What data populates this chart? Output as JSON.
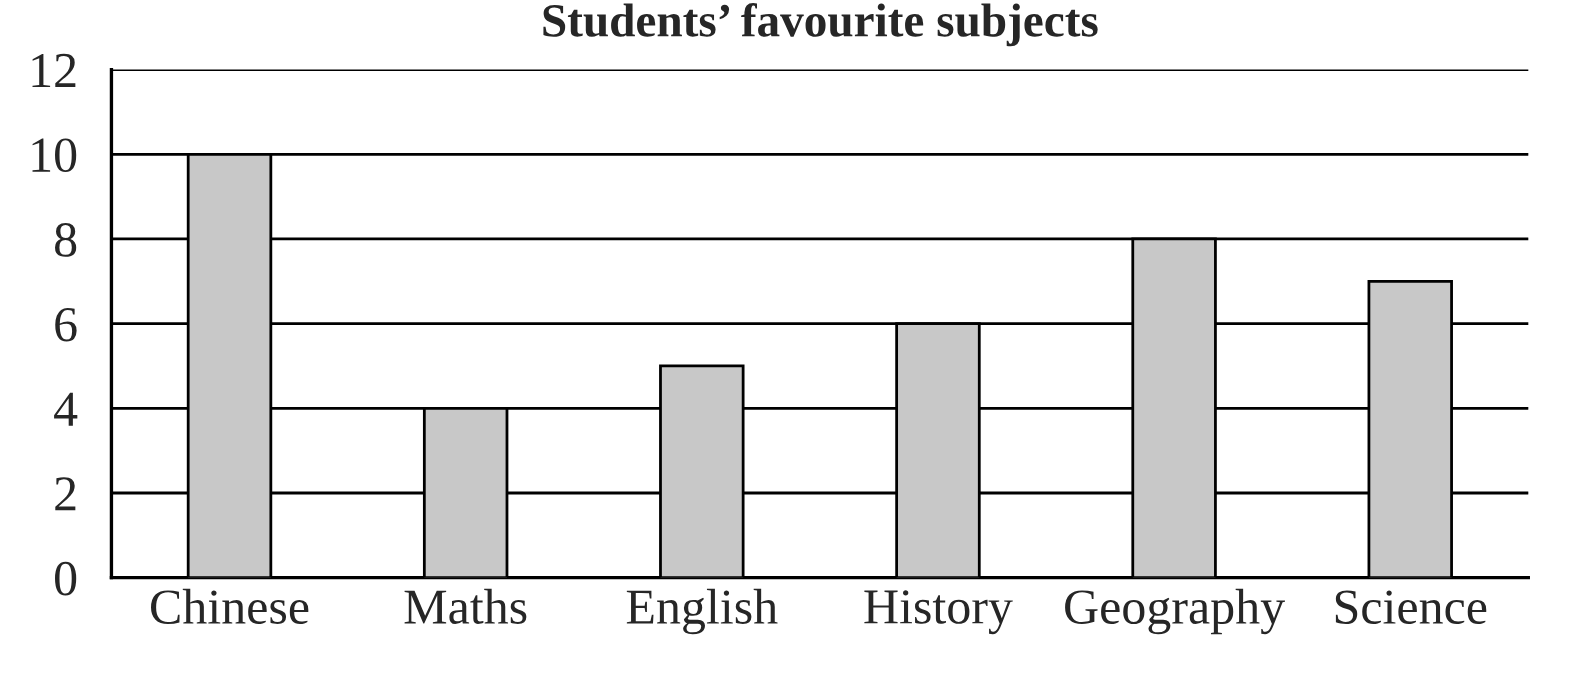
{
  "chart_data": {
    "type": "bar",
    "title": "Students’ favourite subjects",
    "categories": [
      "Chinese",
      "Maths",
      "English",
      "History",
      "Geography",
      "Science"
    ],
    "values": [
      10,
      4,
      5,
      6,
      8,
      7
    ],
    "color": "#c8c8c8",
    "ylim": [
      0,
      12
    ],
    "yticks": [
      0,
      2,
      4,
      6,
      8,
      10,
      12
    ],
    "grid": "y"
  }
}
